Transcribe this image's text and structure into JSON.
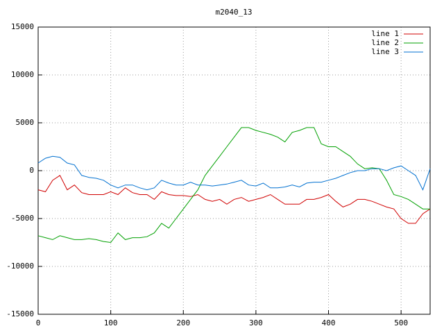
{
  "chart_data": {
    "type": "line",
    "title": "m2040_13",
    "x": [
      0,
      10,
      20,
      30,
      40,
      50,
      60,
      70,
      80,
      90,
      100,
      110,
      120,
      130,
      140,
      150,
      160,
      170,
      180,
      190,
      200,
      210,
      220,
      230,
      240,
      250,
      260,
      270,
      280,
      290,
      300,
      310,
      320,
      330,
      340,
      350,
      360,
      370,
      380,
      390,
      400,
      410,
      420,
      430,
      440,
      450,
      460,
      470,
      480,
      490,
      500,
      510,
      520,
      530,
      540
    ],
    "series": [
      {
        "name": "line 1",
        "color": "#d00000",
        "values": [
          -2000,
          -2200,
          -1000,
          -500,
          -2000,
          -1500,
          -2300,
          -2500,
          -2500,
          -2500,
          -2200,
          -2500,
          -1800,
          -2300,
          -2500,
          -2500,
          -3000,
          -2200,
          -2500,
          -2600,
          -2600,
          -2700,
          -2500,
          -3000,
          -3200,
          -3000,
          -3500,
          -3000,
          -2800,
          -3200,
          -3000,
          -2800,
          -2500,
          -3000,
          -3500,
          -3500,
          -3500,
          -3000,
          -3000,
          -2800,
          -2500,
          -3200,
          -3800,
          -3500,
          -3000,
          -3000,
          -3200,
          -3500,
          -3800,
          -4000,
          -5000,
          -5500,
          -5500,
          -4500,
          -4000
        ]
      },
      {
        "name": "line 2",
        "color": "#00a000",
        "values": [
          -6800,
          -7000,
          -7200,
          -6800,
          -7000,
          -7200,
          -7200,
          -7100,
          -7200,
          -7400,
          -7500,
          -6500,
          -7200,
          -7000,
          -7000,
          -6900,
          -6500,
          -5500,
          -6000,
          -5000,
          -4000,
          -3000,
          -2000,
          -500,
          500,
          1500,
          2500,
          3500,
          4500,
          4500,
          4200,
          4000,
          3800,
          3500,
          3000,
          4000,
          4200,
          4500,
          4500,
          2800,
          2500,
          2500,
          2000,
          1500,
          700,
          200,
          300,
          200,
          -1000,
          -2500,
          -2700,
          -3000,
          -3500,
          -4000,
          -4000
        ]
      },
      {
        "name": "line 3",
        "color": "#0070d0",
        "values": [
          800,
          1300,
          1500,
          1400,
          800,
          600,
          -500,
          -700,
          -800,
          -1000,
          -1500,
          -1800,
          -1500,
          -1500,
          -1800,
          -2000,
          -1800,
          -1000,
          -1300,
          -1500,
          -1500,
          -1200,
          -1500,
          -1500,
          -1600,
          -1500,
          -1400,
          -1200,
          -1000,
          -1500,
          -1600,
          -1300,
          -1800,
          -1800,
          -1700,
          -1500,
          -1700,
          -1300,
          -1200,
          -1200,
          -1000,
          -800,
          -500,
          -200,
          0,
          0,
          200,
          200,
          0,
          300,
          500,
          0,
          -500,
          -2000,
          200
        ]
      }
    ],
    "xlim": [
      0,
      540
    ],
    "xticks": [
      0,
      100,
      200,
      300,
      400,
      500
    ],
    "ylim": [
      -15000,
      15000
    ],
    "yticks": [
      -15000,
      -10000,
      -5000,
      0,
      5000,
      10000,
      15000
    ],
    "grid": true,
    "legend": "top-right"
  }
}
